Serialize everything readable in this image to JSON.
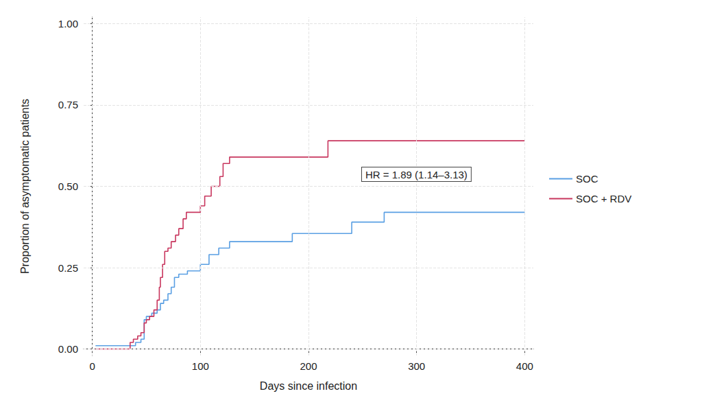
{
  "chart_data": {
    "type": "line",
    "x_label": "Days since infection",
    "y_label": "Proportion of asymptomatic patients",
    "annotations": [
      {
        "text": "HR = 1.89 (1.14–3.13)"
      }
    ],
    "xlim": [
      -8,
      408
    ],
    "xticks": [
      0,
      100,
      200,
      300,
      400
    ],
    "ylim": [
      -0.02,
      1.02
    ],
    "yticks": [
      {
        "value": 0,
        "label": "0.00"
      },
      {
        "value": 0.25,
        "label": "0.25"
      },
      {
        "value": 0.5,
        "label": "0.50"
      },
      {
        "value": 0.75,
        "label": "0.75"
      },
      {
        "value": 1,
        "label": "1.00"
      }
    ],
    "grid": true,
    "legend": "right",
    "line_style": "step",
    "series": [
      {
        "name": "SOC",
        "color": "#5a9fe3",
        "x": [
          3,
          40,
          45,
          48,
          50,
          55,
          60,
          63,
          66,
          70,
          73,
          76,
          80,
          88,
          100,
          108,
          117,
          127,
          185,
          240,
          270,
          400
        ],
        "values": [
          0.01,
          0.02,
          0.03,
          0.09,
          0.1,
          0.11,
          0.12,
          0.14,
          0.15,
          0.17,
          0.19,
          0.22,
          0.23,
          0.24,
          0.26,
          0.29,
          0.31,
          0.33,
          0.355,
          0.39,
          0.42,
          0.42
        ]
      },
      {
        "name": "SOC + RDV",
        "color": "#c8365e",
        "x": [
          3,
          35,
          38,
          42,
          45,
          48,
          50,
          53,
          57,
          60,
          62,
          63,
          65,
          67,
          70,
          73,
          77,
          80,
          84,
          87,
          100,
          104,
          110,
          118,
          121,
          127,
          218,
          400
        ],
        "values": [
          0,
          0.02,
          0.03,
          0.04,
          0.05,
          0.08,
          0.09,
          0.1,
          0.12,
          0.15,
          0.19,
          0.22,
          0.26,
          0.3,
          0.31,
          0.33,
          0.35,
          0.37,
          0.4,
          0.42,
          0.44,
          0.47,
          0.5,
          0.53,
          0.57,
          0.59,
          0.64,
          0.64
        ]
      }
    ]
  }
}
